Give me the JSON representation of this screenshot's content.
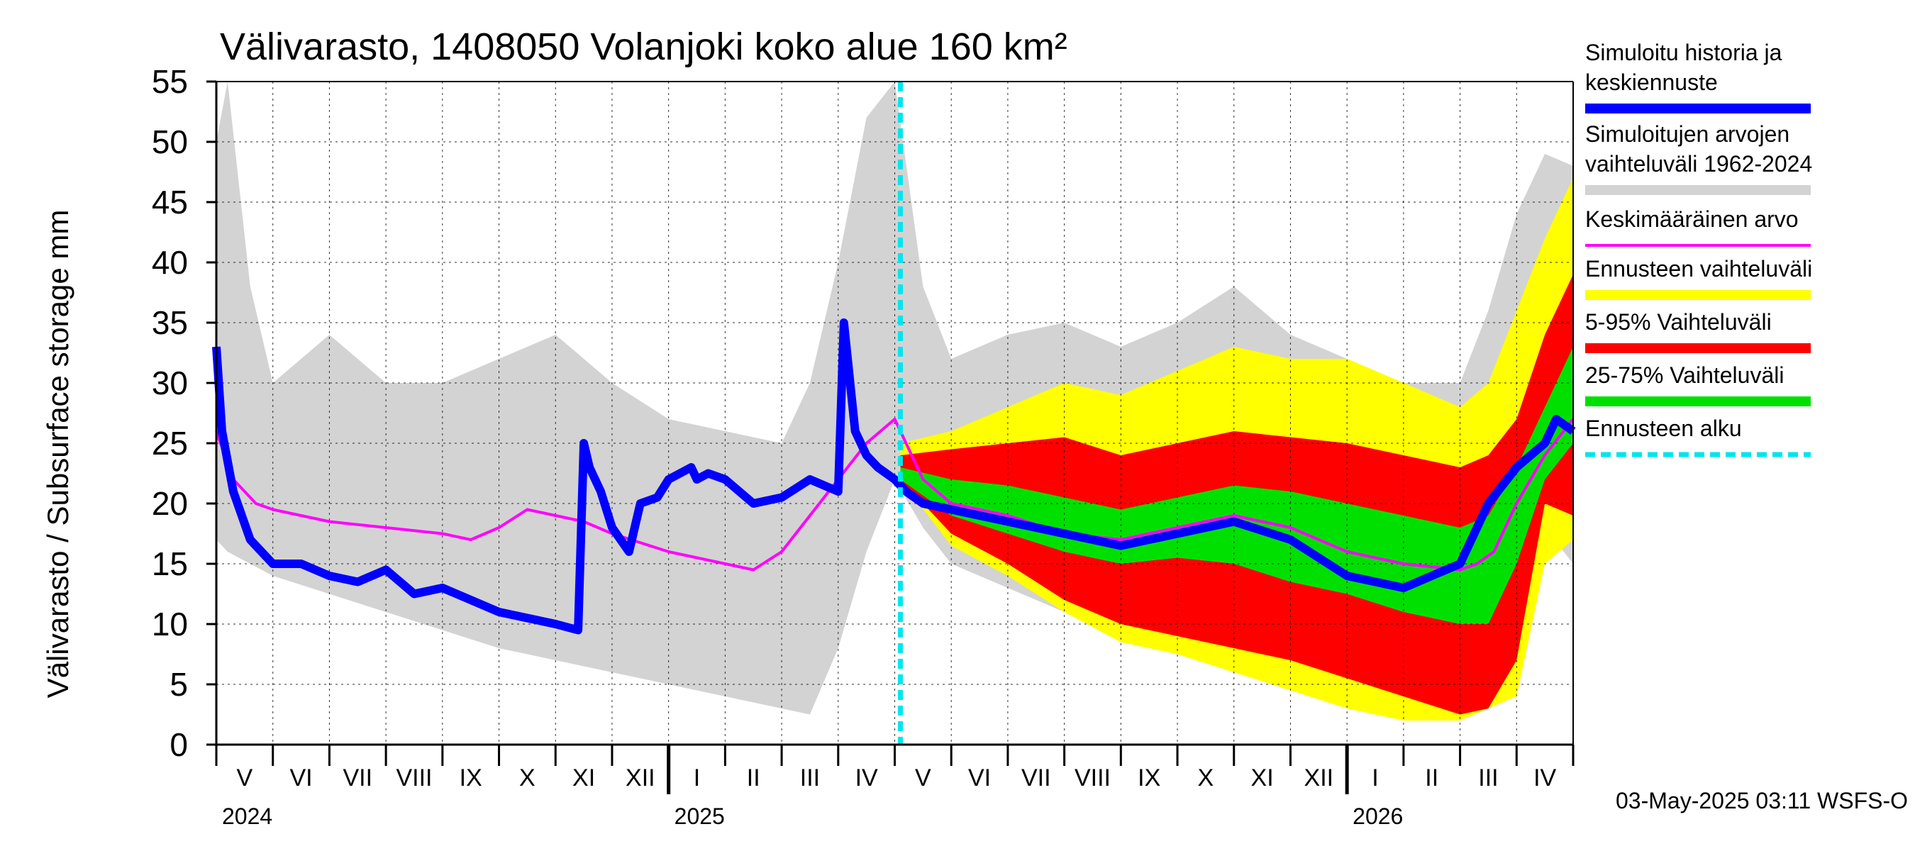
{
  "chart_data": {
    "type": "area",
    "title": "Välivarasto, 1408050 Volanjoki koko alue 160 km²",
    "ylabel": "Välivarasto / Subsurface storage  mm",
    "ylim": [
      0,
      55
    ],
    "yticks": [
      0,
      5,
      10,
      15,
      20,
      25,
      30,
      35,
      40,
      45,
      50,
      55
    ],
    "xlim_months": [
      0,
      24
    ],
    "forecast_start_month": 12.1,
    "months": [
      {
        "label": "V",
        "start": 0
      },
      {
        "label": "VI",
        "start": 1
      },
      {
        "label": "VII",
        "start": 2
      },
      {
        "label": "VIII",
        "start": 3
      },
      {
        "label": "IX",
        "start": 4
      },
      {
        "label": "X",
        "start": 5
      },
      {
        "label": "XI",
        "start": 6
      },
      {
        "label": "XII",
        "start": 7
      },
      {
        "label": "I",
        "start": 8
      },
      {
        "label": "II",
        "start": 9
      },
      {
        "label": "III",
        "start": 10
      },
      {
        "label": "IV",
        "start": 11
      },
      {
        "label": "V",
        "start": 12
      },
      {
        "label": "VI",
        "start": 13
      },
      {
        "label": "VII",
        "start": 14
      },
      {
        "label": "VIII",
        "start": 15
      },
      {
        "label": "IX",
        "start": 16
      },
      {
        "label": "X",
        "start": 17
      },
      {
        "label": "XI",
        "start": 18
      },
      {
        "label": "XII",
        "start": 19
      },
      {
        "label": "I",
        "start": 20
      },
      {
        "label": "II",
        "start": 21
      },
      {
        "label": "III",
        "start": 22
      },
      {
        "label": "IV",
        "start": 23
      }
    ],
    "years": [
      {
        "label": "2024",
        "at_month": 0
      },
      {
        "label": "2025",
        "at_month": 8
      },
      {
        "label": "2026",
        "at_month": 20
      }
    ],
    "series": [
      {
        "name": "Simuloitujen arvojen vaihteluväli 1962-2024",
        "kind": "band",
        "color": "#d3d3d3",
        "x": [
          0,
          0.2,
          0.6,
          1,
          2,
          3,
          4,
          5,
          6,
          7,
          8,
          9,
          10,
          10.5,
          11,
          11.5,
          12,
          12.5,
          13,
          14,
          15,
          16,
          17,
          18,
          19,
          20,
          21,
          22,
          22.5,
          23,
          23.5,
          24
        ],
        "low": [
          17,
          16,
          15,
          14,
          12.5,
          11,
          9.5,
          8,
          7,
          6,
          5,
          4,
          3,
          2.5,
          8,
          16,
          22,
          18,
          15,
          13,
          11,
          9,
          7.5,
          6,
          5,
          4,
          3.2,
          2.5,
          4,
          9,
          18,
          15
        ],
        "high": [
          50,
          55,
          38,
          30,
          34,
          30,
          30,
          32,
          34,
          30,
          27,
          26,
          25,
          30,
          40,
          52,
          55,
          38,
          32,
          34,
          35,
          33,
          35,
          38,
          34,
          32,
          30,
          30,
          36,
          44,
          49,
          48
        ]
      },
      {
        "name": "Ennusteen vaihteluväli",
        "kind": "band",
        "color": "#ffff00",
        "x": [
          12.1,
          13,
          14,
          15,
          16,
          17,
          18,
          19,
          20,
          21,
          22,
          22.5,
          23,
          23.5,
          24
        ],
        "low": [
          22,
          16.5,
          14,
          11,
          8.5,
          7.5,
          6,
          4.5,
          3,
          2,
          2,
          3,
          4,
          15,
          17
        ],
        "high": [
          25,
          26,
          28,
          30,
          29,
          31,
          33,
          32,
          32,
          30,
          28,
          30,
          36,
          42,
          47
        ]
      },
      {
        "name": "5-95% Vaihteluväli",
        "kind": "band",
        "color": "#ff0000",
        "x": [
          12.1,
          13,
          14,
          15,
          16,
          17,
          18,
          19,
          20,
          21,
          22,
          22.5,
          23,
          23.5,
          24
        ],
        "low": [
          22,
          17.5,
          15,
          12,
          10,
          9,
          8,
          7,
          5.5,
          4,
          2.5,
          3,
          7,
          20,
          19
        ],
        "high": [
          24,
          24.5,
          25,
          25.5,
          24,
          25,
          26,
          25.5,
          25,
          24,
          23,
          24,
          27,
          34,
          39
        ]
      },
      {
        "name": "25-75% Vaihteluväli",
        "kind": "band",
        "color": "#00e000",
        "x": [
          12.1,
          13,
          14,
          15,
          16,
          17,
          18,
          19,
          20,
          21,
          22,
          22.5,
          23,
          23.5,
          24
        ],
        "low": [
          22,
          19,
          17.5,
          16,
          15,
          15.5,
          15,
          13.5,
          12.5,
          11,
          10,
          10,
          15,
          22,
          25
        ],
        "high": [
          23,
          22,
          21.5,
          20.5,
          19.5,
          20.5,
          21.5,
          21,
          20,
          19,
          18,
          19,
          23,
          28,
          33
        ]
      },
      {
        "name": "Keskimääräinen arvo",
        "kind": "line",
        "color": "#ff00ff",
        "x": [
          0,
          0.3,
          0.7,
          1,
          2,
          3,
          4,
          4.5,
          5,
          5.5,
          6,
          6.5,
          7,
          8,
          9,
          9.5,
          10,
          10.5,
          11,
          11.5,
          12,
          12.5,
          13,
          14,
          15,
          16,
          17,
          18,
          19,
          20,
          21,
          22,
          22.3,
          22.6,
          23,
          23.5,
          24
        ],
        "y": [
          26,
          22,
          20,
          19.5,
          18.5,
          18,
          17.5,
          17,
          18,
          19.5,
          19,
          18.5,
          17.5,
          16,
          15,
          14.5,
          16,
          19,
          22,
          25,
          27,
          22,
          20,
          19,
          17.5,
          17,
          18,
          19,
          18,
          16,
          15,
          14.5,
          15,
          16,
          20,
          24,
          27
        ]
      },
      {
        "name": "Simuloitu historia ja keskiennuste",
        "kind": "line",
        "color": "#0000ff",
        "x": [
          0,
          0.1,
          0.3,
          0.6,
          1,
          1.5,
          2,
          2.5,
          3,
          3.5,
          4,
          4.5,
          5,
          5.5,
          6,
          6.4,
          6.5,
          6.6,
          6.8,
          7,
          7.3,
          7.5,
          7.8,
          8,
          8.4,
          8.5,
          8.7,
          9,
          9.5,
          10,
          10.5,
          11,
          11.1,
          11.3,
          11.5,
          11.7,
          12,
          12.2,
          12.5,
          13,
          14,
          15,
          16,
          17,
          18,
          19,
          20,
          21,
          21.5,
          22,
          22.5,
          23,
          23.5,
          23.7,
          24
        ],
        "y": [
          33,
          26,
          21,
          17,
          15,
          15,
          14,
          13.5,
          14.5,
          12.5,
          13,
          12,
          11,
          10.5,
          10,
          9.5,
          25,
          23,
          21,
          18,
          16,
          20,
          20.5,
          22,
          23,
          22,
          22.5,
          22,
          20,
          20.5,
          22,
          21,
          35,
          26,
          24,
          23,
          22,
          21,
          20,
          19.5,
          18.5,
          17.5,
          16.5,
          17.5,
          18.5,
          17,
          14,
          13,
          14,
          15,
          20,
          23,
          25,
          27,
          26
        ]
      }
    ],
    "forecast_start_line": {
      "name": "Ennusteen alku",
      "color": "#00e5ee"
    }
  },
  "legend": [
    {
      "label": "Simuloitu historia ja keskiennuste",
      "color": "#0000ff",
      "style": "thick"
    },
    {
      "label": "Simuloitujen arvojen vaihteluväli 1962-2024",
      "color": "#d3d3d3",
      "style": "thick"
    },
    {
      "label": "Keskimääräinen arvo",
      "color": "#ff00ff",
      "style": "thin"
    },
    {
      "label": "Ennusteen vaihteluväli",
      "color": "#ffff00",
      "style": "thick"
    },
    {
      "label": "5-95% Vaihteluväli",
      "color": "#ff0000",
      "style": "thick"
    },
    {
      "label": "25-75% Vaihteluväli",
      "color": "#00e000",
      "style": "thick"
    },
    {
      "label": "Ennusteen alku",
      "color": "#00e5ee",
      "style": "dashed"
    }
  ],
  "footer": "03-May-2025 03:11 WSFS-O"
}
